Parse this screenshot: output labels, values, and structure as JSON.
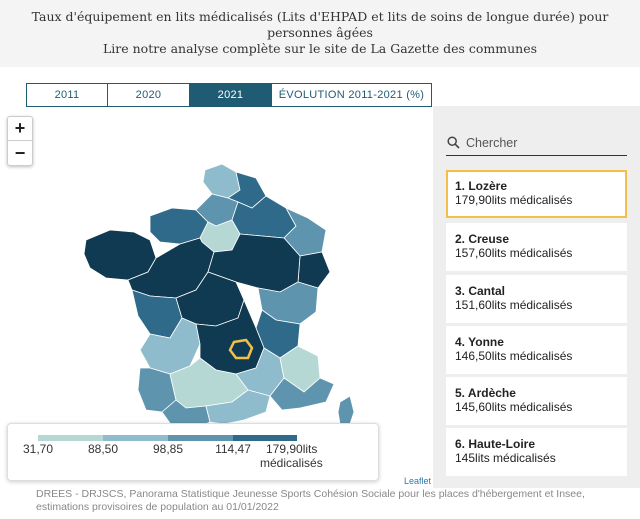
{
  "header": {
    "title": "Taux d'équipement en lits médicalisés (Lits d'EHPAD et lits de soins de longue durée) pour personnes âgées",
    "subtitle": "Lire notre analyse complète sur le site de La Gazette des communes"
  },
  "tabs": [
    {
      "label": "2011",
      "active": false
    },
    {
      "label": "2020",
      "active": false
    },
    {
      "label": "2021",
      "active": true
    },
    {
      "label": "ÉVOLUTION 2011-2021 (%)",
      "active": false
    }
  ],
  "zoom": {
    "in": "+",
    "out": "−"
  },
  "legend": {
    "breaks": [
      "31,70",
      "88,50",
      "98,85",
      "114,47",
      "179,90lits"
    ],
    "unit": "médicalisés",
    "colors": [
      "#b5d8d5",
      "#8fbccc",
      "#5f94af",
      "#2f6a8b",
      "#0f3a52"
    ]
  },
  "attribution": "Leaflet",
  "search": {
    "placeholder": "Chercher",
    "icon": "search-icon"
  },
  "ranking": [
    {
      "name": "1. Lozère",
      "value": "179,90lits médicalisés",
      "selected": true
    },
    {
      "name": "2. Creuse",
      "value": "157,60lits médicalisés",
      "selected": false
    },
    {
      "name": "3. Cantal",
      "value": "151,60lits médicalisés",
      "selected": false
    },
    {
      "name": "4. Yonne",
      "value": "146,50lits médicalisés",
      "selected": false
    },
    {
      "name": "5. Ardèche",
      "value": "145,60lits médicalisés",
      "selected": false
    },
    {
      "name": "6. Haute-Loire",
      "value": "145lits médicalisés",
      "selected": false
    }
  ],
  "source": "DREES - DRJSCS, Panorama Statistique Jeunesse Sports Cohésion Sociale pour les places d'hébergement et Insee, estimations provisoires de population au 01/01/2022",
  "highlight_color": "#f2c04a"
}
